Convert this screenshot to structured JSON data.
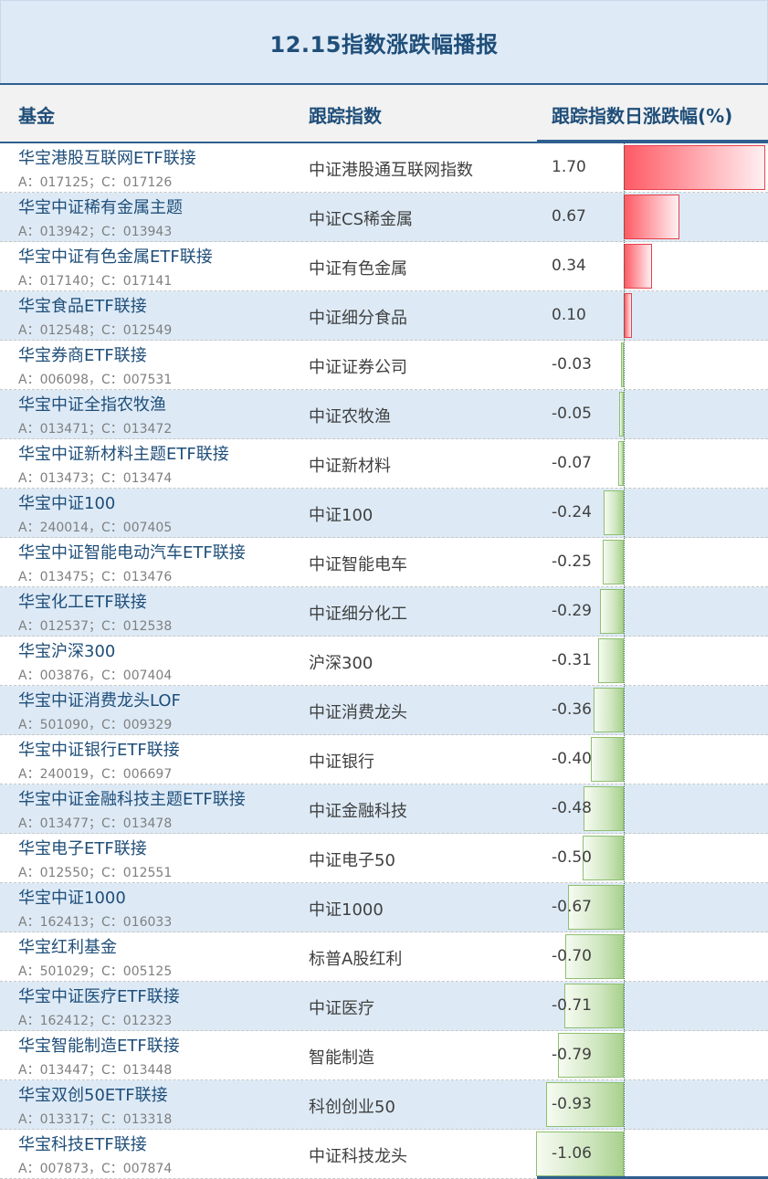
{
  "title": "12.15指数涨跌幅播报",
  "headers": {
    "fund": "基金",
    "index": "跟踪指数",
    "change": "跟踪指数日涨跌幅(%)"
  },
  "colors": {
    "accent": "#1f4e79",
    "positive": "#ff5a64",
    "negative": "#a9d18e",
    "stripe": "#ddeaf6"
  },
  "rows": [
    {
      "fund": "华宝港股互联网ETF联接",
      "codes": "A：017125；C：017126",
      "index": "中证港股通互联网指数",
      "change": "1.70",
      "value": 1.7
    },
    {
      "fund": "华宝中证稀有金属主题",
      "codes": "A：013942；C：013943",
      "index": "中证CS稀金属",
      "change": "0.67",
      "value": 0.67
    },
    {
      "fund": "华宝中证有色金属ETF联接",
      "codes": "A：017140；C：017141",
      "index": "中证有色金属",
      "change": "0.34",
      "value": 0.34
    },
    {
      "fund": "华宝食品ETF联接",
      "codes": "A：012548；C：012549",
      "index": "中证细分食品",
      "change": "0.10",
      "value": 0.1
    },
    {
      "fund": "华宝券商ETF联接",
      "codes": "A：006098，C：007531",
      "index": "中证证券公司",
      "change": "-0.03",
      "value": -0.03
    },
    {
      "fund": "华宝中证全指农牧渔",
      "codes": "A：013471；C：013472",
      "index": "中证农牧渔",
      "change": "-0.05",
      "value": -0.05
    },
    {
      "fund": "华宝中证新材料主题ETF联接",
      "codes": "A：013473；C：013474",
      "index": "中证新材料",
      "change": "-0.07",
      "value": -0.07
    },
    {
      "fund": "华宝中证100",
      "codes": "A：240014，C：007405",
      "index": "中证100",
      "change": "-0.24",
      "value": -0.24
    },
    {
      "fund": "华宝中证智能电动汽车ETF联接",
      "codes": "A：013475；C：013476",
      "index": "中证智能电车",
      "change": "-0.25",
      "value": -0.25
    },
    {
      "fund": "华宝化工ETF联接",
      "codes": "A：012537；C：012538",
      "index": "中证细分化工",
      "change": "-0.29",
      "value": -0.29
    },
    {
      "fund": "华宝沪深300",
      "codes": "A：003876，C：007404",
      "index": "沪深300",
      "change": "-0.31",
      "value": -0.31
    },
    {
      "fund": "华宝中证消费龙头LOF",
      "codes": "A：501090，C：009329",
      "index": "中证消费龙头",
      "change": "-0.36",
      "value": -0.36
    },
    {
      "fund": "华宝中证银行ETF联接",
      "codes": "A：240019，C：006697",
      "index": "中证银行",
      "change": "-0.40",
      "value": -0.4
    },
    {
      "fund": "华宝中证金融科技主题ETF联接",
      "codes": "A：013477；C：013478",
      "index": "中证金融科技",
      "change": "-0.48",
      "value": -0.48
    },
    {
      "fund": "华宝电子ETF联接",
      "codes": "A：012550；C：012551",
      "index": "中证电子50",
      "change": "-0.50",
      "value": -0.5
    },
    {
      "fund": "华宝中证1000",
      "codes": "A：162413；C：016033",
      "index": "中证1000",
      "change": "-0.67",
      "value": -0.67
    },
    {
      "fund": "华宝红利基金",
      "codes": "A：501029；C：005125",
      "index": "标普A股红利",
      "change": "-0.70",
      "value": -0.7
    },
    {
      "fund": "华宝中证医疗ETF联接",
      "codes": "A：162412；C：012323",
      "index": "中证医疗",
      "change": "-0.71",
      "value": -0.71
    },
    {
      "fund": "华宝智能制造ETF联接",
      "codes": "A：013447；C：013448",
      "index": "智能制造",
      "change": "-0.79",
      "value": -0.79
    },
    {
      "fund": "华宝双创50ETF联接",
      "codes": "A：013317；C：013318",
      "index": "科创创业50",
      "change": "-0.93",
      "value": -0.93
    },
    {
      "fund": "华宝科技ETF联接",
      "codes": "A：007873，C：007874",
      "index": "中证科技龙头",
      "change": "-1.06",
      "value": -1.06
    }
  ]
}
